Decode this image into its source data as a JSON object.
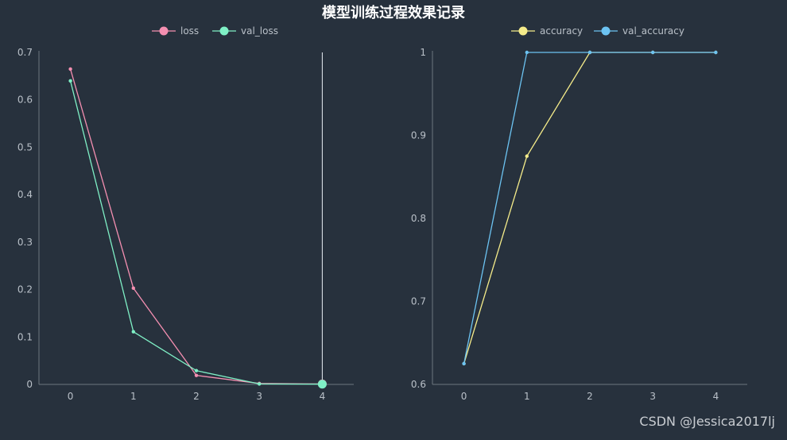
{
  "title": "模型训练过程效果记录",
  "watermark": "CSDN @Jessica2017lj",
  "colors": {
    "background": "#27313d",
    "title": "#ffffff",
    "axis": "#6e7680",
    "tick_text": "#b9c0c8",
    "legend_text": "#b9c0c8",
    "cursor_line": "#e8eef4"
  },
  "chart_data": [
    {
      "type": "line",
      "categories": [
        "0",
        "1",
        "2",
        "3",
        "4"
      ],
      "series": [
        {
          "name": "loss",
          "color": "#f48fb1",
          "values": [
            0.665,
            0.203,
            0.019,
            0.002,
            0.001
          ]
        },
        {
          "name": "val_loss",
          "color": "#7ff0c6",
          "values": [
            0.64,
            0.111,
            0.029,
            0.001,
            0.0005
          ]
        }
      ],
      "ylim": [
        0,
        0.7
      ],
      "yticks": [
        "0",
        "0.1",
        "0.2",
        "0.3",
        "0.4",
        "0.5",
        "0.6",
        "0.7"
      ],
      "hover_index": 4,
      "legend_position": "top-center"
    },
    {
      "type": "line",
      "categories": [
        "0",
        "1",
        "2",
        "3",
        "4"
      ],
      "series": [
        {
          "name": "accuracy",
          "color": "#f5ec8a",
          "values": [
            0.625,
            0.875,
            1,
            1,
            1
          ]
        },
        {
          "name": "val_accuracy",
          "color": "#6cc3f2",
          "values": [
            0.625,
            1,
            1,
            1,
            1
          ]
        }
      ],
      "ylim": [
        0.6,
        1
      ],
      "yticks": [
        "0.6",
        "0.7",
        "0.8",
        "0.9",
        "1"
      ],
      "legend_position": "top-center"
    }
  ]
}
